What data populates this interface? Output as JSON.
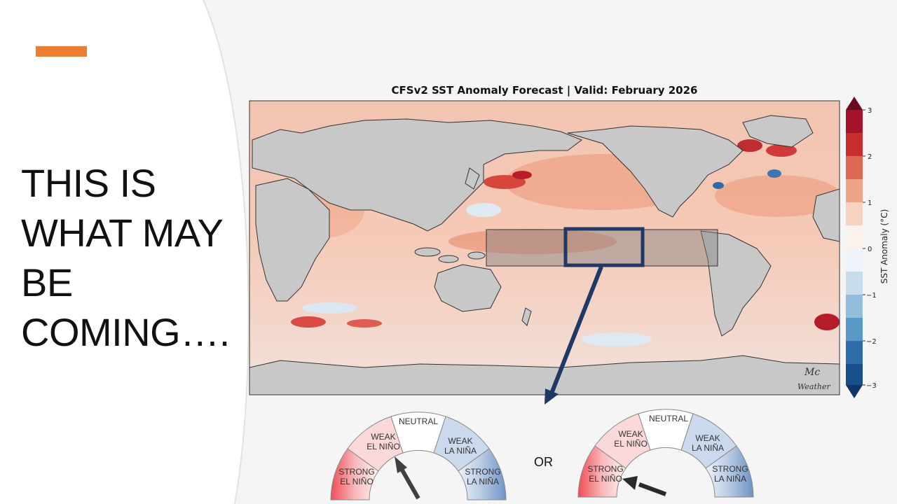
{
  "headline": [
    "THIS IS",
    "WHAT MAY",
    "BE",
    "COMING…."
  ],
  "map": {
    "title": "CFSv2 SST Anomaly Forecast | Valid: February 2026",
    "colorbar_label": "SST Anomaly (°C)",
    "colorbar_ticks": [
      "3",
      "2",
      "1",
      "0",
      "−1",
      "−2",
      "−3"
    ],
    "watermark_top": "Mc",
    "watermark_bottom": "Weather"
  },
  "or_label": "OR",
  "gauges": [
    {
      "pointer": "weak-el-nino",
      "segments": {
        "strong_el_nino": [
          "STRONG",
          "EL NIÑO"
        ],
        "weak_el_nino": [
          "WEAK",
          "EL NIÑO"
        ],
        "neutral": [
          "NEUTRAL"
        ],
        "weak_la_nina": [
          "WEAK",
          "LA NIÑA"
        ],
        "strong_la_nina": [
          "STRONG",
          "LA NIÑA"
        ]
      }
    },
    {
      "pointer": "strong-el-nino",
      "segments": {
        "strong_el_nino": [
          "STRONG",
          "EL NIÑO"
        ],
        "weak_el_nino": [
          "WEAK",
          "EL NIÑO"
        ],
        "neutral": [
          "NEUTRAL"
        ],
        "weak_la_nina": [
          "WEAK",
          "LA NIÑA"
        ],
        "strong_la_nina": [
          "STRONG",
          "LA NIÑA"
        ]
      }
    }
  ],
  "colors": {
    "accent": "#ed7d31",
    "ocean_warm": "#f4b7a0",
    "land": "#c8c8c8",
    "arrow": "#1f3864"
  }
}
